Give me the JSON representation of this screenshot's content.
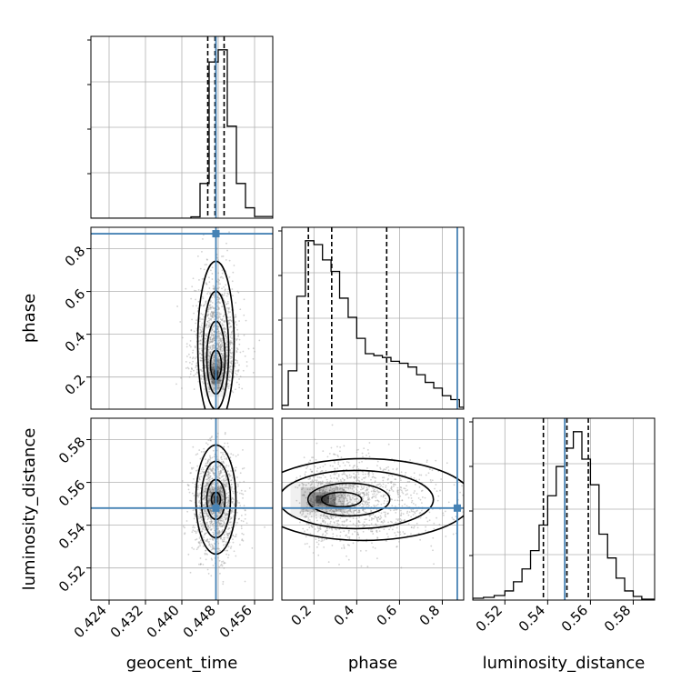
{
  "colors": {
    "truth": "#4682b4",
    "hist": "#000000",
    "grid": "#b0b0b0",
    "scatter": "#9a9a9a",
    "density": "#000000"
  },
  "chart_data": {
    "type": "corner",
    "parameters": [
      "geocent_time",
      "phase",
      "luminosity_distance"
    ],
    "axis_labels": {
      "x": [
        "geocent_time",
        "phase",
        "luminosity_distance"
      ],
      "y": [
        "phase",
        "luminosity_distance"
      ]
    },
    "ranges": {
      "geocent_time": [
        0.42,
        0.46
      ],
      "phase": [
        0.05,
        0.9
      ],
      "luminosity_distance": [
        0.505,
        0.59
      ]
    },
    "ticks": {
      "geocent_time": {
        "values": [
          0.424,
          0.432,
          0.44,
          0.448,
          0.456
        ],
        "labels": [
          "0.424",
          "0.432",
          "0.440",
          "0.448",
          "0.456"
        ]
      },
      "phase": {
        "values": [
          0.2,
          0.4,
          0.6,
          0.8
        ],
        "labels": [
          "0.2",
          "0.4",
          "0.6",
          "0.8"
        ]
      },
      "luminosity_distance": {
        "values": [
          0.52,
          0.54,
          0.56,
          0.58
        ],
        "labels": [
          "0.52",
          "0.54",
          "0.56",
          "0.58"
        ]
      }
    },
    "truths": {
      "geocent_time": 0.4475,
      "phase": 0.87,
      "luminosity_distance": 0.548
    },
    "quantiles": {
      "geocent_time": [
        0.4457,
        0.4473,
        0.4493
      ],
      "phase": [
        0.174,
        0.283,
        0.54
      ],
      "luminosity_distance": [
        0.538,
        0.549,
        0.559
      ]
    },
    "histograms": {
      "geocent_time": {
        "bin_edges": [
          0.42,
          0.442,
          0.444,
          0.446,
          0.448,
          0.45,
          0.452,
          0.454,
          0.456,
          0.46
        ],
        "counts": [
          0,
          0.8,
          20,
          90,
          97,
          53,
          20,
          6,
          1
        ]
      },
      "phase": {
        "bin_edges": [
          0.05,
          0.08,
          0.12,
          0.16,
          0.2,
          0.24,
          0.28,
          0.32,
          0.36,
          0.4,
          0.44,
          0.48,
          0.52,
          0.56,
          0.6,
          0.64,
          0.68,
          0.72,
          0.76,
          0.8,
          0.84,
          0.88,
          0.9
        ],
        "counts": [
          2,
          20,
          59,
          88,
          86,
          78,
          72,
          58,
          48,
          37,
          29,
          28,
          27,
          25,
          24,
          22,
          18,
          14,
          11,
          7,
          5,
          1
        ]
      },
      "luminosity_distance": {
        "bin_edges": [
          0.505,
          0.51,
          0.515,
          0.52,
          0.524,
          0.528,
          0.532,
          0.536,
          0.54,
          0.544,
          0.548,
          0.552,
          0.556,
          0.56,
          0.564,
          0.568,
          0.572,
          0.576,
          0.58,
          0.584,
          0.59
        ],
        "counts": [
          1,
          1.5,
          2.5,
          5,
          10,
          17,
          27,
          41,
          57,
          73,
          83,
          92,
          77,
          63,
          36,
          23,
          12,
          5,
          2,
          0.5
        ]
      }
    },
    "contour_panels": [
      {
        "x": "geocent_time",
        "y": "phase",
        "samples_mean": [
          0.4475,
          0.3
        ],
        "spread": [
          0.0025,
          0.16
        ]
      },
      {
        "x": "geocent_time",
        "y": "luminosity_distance",
        "samples_mean": [
          0.4475,
          0.55
        ],
        "spread": [
          0.0025,
          0.012
        ]
      },
      {
        "x": "phase",
        "y": "luminosity_distance",
        "samples_mean": [
          0.32,
          0.551
        ],
        "spread": [
          0.2,
          0.01
        ]
      }
    ]
  }
}
